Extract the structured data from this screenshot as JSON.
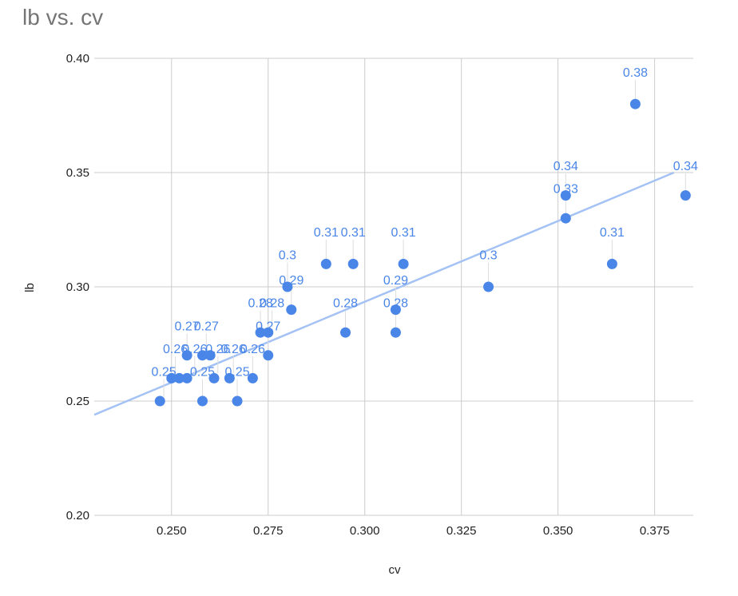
{
  "chart_data": {
    "type": "scatter",
    "title": "lb vs. cv",
    "xlabel": "cv",
    "ylabel": "lb",
    "xlim": [
      0.23,
      0.385
    ],
    "ylim": [
      0.2,
      0.4
    ],
    "x_ticks": [
      "0.250",
      "0.275",
      "0.300",
      "0.325",
      "0.350",
      "0.375"
    ],
    "y_ticks": [
      "0.20",
      "0.25",
      "0.30",
      "0.35",
      "0.40"
    ],
    "grid": true,
    "trendline": {
      "type": "linear",
      "x": [
        0.23,
        0.38
      ],
      "y": [
        0.244,
        0.35
      ],
      "color": "#a4c2f4"
    },
    "series": [
      {
        "color": "#4a86e8",
        "points": [
          {
            "x": 0.247,
            "y": 0.25
          },
          {
            "x": 0.25,
            "y": 0.26
          },
          {
            "x": 0.252,
            "y": 0.26
          },
          {
            "x": 0.254,
            "y": 0.27
          },
          {
            "x": 0.254,
            "y": 0.26
          },
          {
            "x": 0.258,
            "y": 0.27
          },
          {
            "x": 0.258,
            "y": 0.25
          },
          {
            "x": 0.26,
            "y": 0.27
          },
          {
            "x": 0.261,
            "y": 0.26
          },
          {
            "x": 0.265,
            "y": 0.26
          },
          {
            "x": 0.267,
            "y": 0.25
          },
          {
            "x": 0.271,
            "y": 0.26
          },
          {
            "x": 0.273,
            "y": 0.28
          },
          {
            "x": 0.275,
            "y": 0.28
          },
          {
            "x": 0.275,
            "y": 0.27
          },
          {
            "x": 0.28,
            "y": 0.3
          },
          {
            "x": 0.281,
            "y": 0.29
          },
          {
            "x": 0.29,
            "y": 0.31
          },
          {
            "x": 0.295,
            "y": 0.28
          },
          {
            "x": 0.297,
            "y": 0.31
          },
          {
            "x": 0.308,
            "y": 0.29
          },
          {
            "x": 0.308,
            "y": 0.28
          },
          {
            "x": 0.31,
            "y": 0.31
          },
          {
            "x": 0.332,
            "y": 0.3
          },
          {
            "x": 0.352,
            "y": 0.34
          },
          {
            "x": 0.352,
            "y": 0.33
          },
          {
            "x": 0.364,
            "y": 0.31
          },
          {
            "x": 0.37,
            "y": 0.38
          },
          {
            "x": 0.383,
            "y": 0.34
          }
        ]
      }
    ],
    "data_labels": [
      {
        "text": "0.25",
        "x": 0.248,
        "y": 0.25,
        "ly": 0.261
      },
      {
        "text": "0.26",
        "x": 0.251,
        "y": 0.26,
        "ly": 0.271
      },
      {
        "text": "0.27",
        "x": 0.254,
        "y": 0.27,
        "ly": 0.281
      },
      {
        "text": "0.26",
        "x": 0.256,
        "y": 0.26,
        "ly": 0.271
      },
      {
        "text": "0.27",
        "x": 0.259,
        "y": 0.27,
        "ly": 0.281
      },
      {
        "text": "0.25",
        "x": 0.258,
        "y": 0.25,
        "ly": 0.261
      },
      {
        "text": "0.26",
        "x": 0.262,
        "y": 0.26,
        "ly": 0.271
      },
      {
        "text": "0.26",
        "x": 0.266,
        "y": 0.26,
        "ly": 0.271
      },
      {
        "text": "0.25",
        "x": 0.267,
        "y": 0.25,
        "ly": 0.261
      },
      {
        "text": "0.26",
        "x": 0.271,
        "y": 0.26,
        "ly": 0.271
      },
      {
        "text": "0.28",
        "x": 0.273,
        "y": 0.28,
        "ly": 0.291
      },
      {
        "text": "0.28",
        "x": 0.276,
        "y": 0.28,
        "ly": 0.291
      },
      {
        "text": "0.27",
        "x": 0.275,
        "y": 0.27,
        "ly": 0.281
      },
      {
        "text": "0.3",
        "x": 0.28,
        "y": 0.3,
        "ly": 0.312
      },
      {
        "text": "0.29",
        "x": 0.281,
        "y": 0.29,
        "ly": 0.301
      },
      {
        "text": "0.31",
        "x": 0.29,
        "y": 0.31,
        "ly": 0.322
      },
      {
        "text": "0.28",
        "x": 0.295,
        "y": 0.28,
        "ly": 0.291
      },
      {
        "text": "0.31",
        "x": 0.297,
        "y": 0.31,
        "ly": 0.322
      },
      {
        "text": "0.29",
        "x": 0.308,
        "y": 0.29,
        "ly": 0.301
      },
      {
        "text": "0.28",
        "x": 0.308,
        "y": 0.28,
        "ly": 0.291
      },
      {
        "text": "0.31",
        "x": 0.31,
        "y": 0.31,
        "ly": 0.322
      },
      {
        "text": "0.3",
        "x": 0.332,
        "y": 0.3,
        "ly": 0.312
      },
      {
        "text": "0.34",
        "x": 0.352,
        "y": 0.34,
        "ly": 0.351
      },
      {
        "text": "0.33",
        "x": 0.352,
        "y": 0.33,
        "ly": 0.341
      },
      {
        "text": "0.31",
        "x": 0.364,
        "y": 0.31,
        "ly": 0.322
      },
      {
        "text": "0.38",
        "x": 0.37,
        "y": 0.38,
        "ly": 0.392
      },
      {
        "text": "0.34",
        "x": 0.383,
        "y": 0.34,
        "ly": 0.351
      }
    ]
  }
}
